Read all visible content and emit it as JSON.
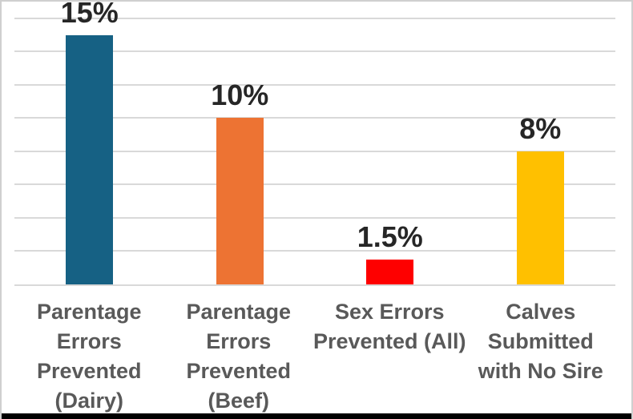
{
  "colors": {
    "background": "#ffffff",
    "frame_border": "#cfcfcf",
    "gridline": "#d9d9d9",
    "axis_line": "#d9d9d9",
    "value_label": "#262626",
    "category_label": "#595959",
    "bottom_line": "#000000"
  },
  "chart_data": {
    "type": "bar",
    "title": "",
    "xlabel": "",
    "ylabel": "",
    "categories": [
      "Parentage Errors Prevented (Dairy)",
      "Parentage Errors Prevented (Beef)",
      "Sex Errors Prevented (All)",
      "Calves Submitted with No Sire"
    ],
    "categories_lines": [
      [
        "Parentage",
        "Errors",
        "Prevented",
        "(Dairy)"
      ],
      [
        "Parentage",
        "Errors",
        "Prevented",
        "(Beef)"
      ],
      [
        "Sex Errors",
        "Prevented (All)"
      ],
      [
        "Calves",
        "Submitted",
        "with No Sire"
      ]
    ],
    "values": [
      15,
      10,
      1.5,
      8
    ],
    "value_labels": [
      "15%",
      "10%",
      "1.5%",
      "8%"
    ],
    "bar_colors": [
      "#166184",
      "#ed7333",
      "#fe0000",
      "#ffc000"
    ],
    "ylim": [
      0,
      17
    ],
    "gridline_values": [
      2,
      4,
      6,
      8,
      10,
      12,
      14,
      16
    ],
    "grid": true,
    "legend": false,
    "y_tick_labels_shown": false
  }
}
